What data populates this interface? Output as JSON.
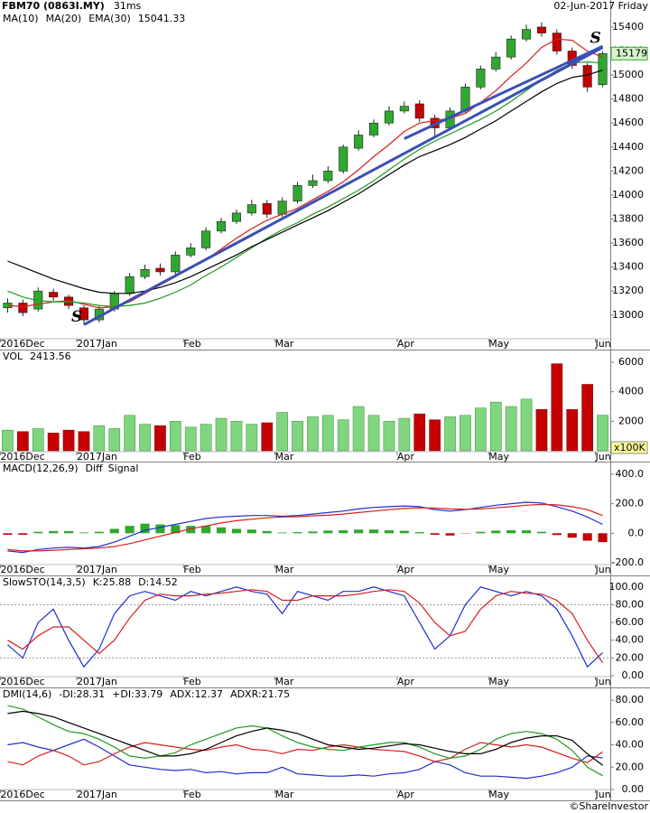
{
  "chart_data": [
    {
      "type": "candlestick",
      "title": "FBM70 (0863I.MY)",
      "subtitle": "31ms",
      "date": "02-Jun-2017 Friday",
      "categories": [
        "2016Dec",
        null,
        null,
        null,
        null,
        "2017Jan",
        null,
        null,
        null,
        null,
        null,
        null,
        "Feb",
        null,
        null,
        null,
        null,
        null,
        "Mar",
        null,
        null,
        null,
        null,
        null,
        null,
        null,
        "Apr",
        null,
        null,
        null,
        null,
        null,
        "May",
        null,
        null,
        null,
        null,
        null,
        null,
        "Jun"
      ],
      "open": [
        13060,
        13100,
        13050,
        13190,
        13150,
        13060,
        12960,
        13050,
        13180,
        13320,
        13390,
        13360,
        13500,
        13560,
        13700,
        13780,
        13850,
        13930,
        13840,
        13950,
        14080,
        14120,
        14200,
        14390,
        14500,
        14600,
        14700,
        14760,
        14640,
        14560,
        14700,
        14900,
        15050,
        15150,
        15300,
        15400,
        15350,
        15200,
        15080,
        14920
      ],
      "high": [
        13140,
        13130,
        13230,
        13220,
        13170,
        13080,
        13080,
        13200,
        13350,
        13420,
        13430,
        13530,
        13600,
        13730,
        13810,
        13880,
        13960,
        13960,
        13980,
        14110,
        14170,
        14240,
        14420,
        14540,
        14630,
        14740,
        14780,
        14790,
        14670,
        14730,
        14930,
        15080,
        15190,
        15330,
        15420,
        15440,
        15380,
        15230,
        15100,
        15200
      ],
      "low": [
        13020,
        12990,
        13030,
        13120,
        13050,
        12920,
        12940,
        13030,
        13160,
        13300,
        13330,
        13340,
        13480,
        13540,
        13680,
        13760,
        13830,
        13810,
        13820,
        13930,
        14060,
        14100,
        14180,
        14370,
        14480,
        14580,
        14680,
        14610,
        14480,
        14540,
        14680,
        14880,
        15030,
        15130,
        15280,
        15320,
        15170,
        15050,
        14860,
        14900
      ],
      "close": [
        13100,
        13020,
        13200,
        13150,
        13080,
        12960,
        13050,
        13180,
        13320,
        13380,
        13360,
        13500,
        13560,
        13700,
        13780,
        13850,
        13920,
        13840,
        13950,
        14080,
        14120,
        14200,
        14400,
        14500,
        14600,
        14700,
        14740,
        14640,
        14560,
        14700,
        14900,
        15050,
        15150,
        15300,
        15380,
        15350,
        15200,
        15080,
        14900,
        15179
      ],
      "up_color": "#2fa82f",
      "down_color": "#c40000",
      "series": [
        {
          "name": "MA(10)",
          "color": "#d81e1e",
          "values": [
            13080,
            13070,
            13090,
            13110,
            13120,
            13090,
            13060,
            13070,
            13110,
            13180,
            13250,
            13320,
            13400,
            13460,
            13550,
            13640,
            13720,
            13790,
            13840,
            13890,
            13960,
            14030,
            14110,
            14210,
            14320,
            14420,
            14530,
            14600,
            14620,
            14640,
            14680,
            14770,
            14870,
            14990,
            15100,
            15230,
            15300,
            15290,
            15200,
            15150
          ]
        },
        {
          "name": "MA(20)",
          "color": "#1f9a1f",
          "values": [
            13200,
            13150,
            13120,
            13110,
            13110,
            13100,
            13080,
            13070,
            13080,
            13100,
            13140,
            13190,
            13250,
            13330,
            13400,
            13480,
            13560,
            13640,
            13710,
            13770,
            13840,
            13900,
            13970,
            14040,
            14120,
            14210,
            14300,
            14380,
            14450,
            14510,
            14570,
            14630,
            14700,
            14780,
            14870,
            14960,
            15040,
            15100,
            15110,
            15100
          ]
        },
        {
          "name": "EMA(30)",
          "color": "#000000",
          "values": [
            13450,
            13400,
            13350,
            13300,
            13260,
            13220,
            13190,
            13180,
            13180,
            13200,
            13230,
            13270,
            13320,
            13380,
            13440,
            13500,
            13570,
            13630,
            13690,
            13750,
            13810,
            13870,
            13940,
            14010,
            14090,
            14170,
            14250,
            14320,
            14370,
            14420,
            14480,
            14550,
            14620,
            14700,
            14780,
            14860,
            14930,
            14980,
            15000,
            15041.33
          ]
        }
      ],
      "trendlines": [
        {
          "label": "S",
          "color": "#3a4fb5",
          "points": [
            [
              5,
              12920
            ],
            [
              39,
              15230
            ]
          ]
        },
        {
          "label": "S",
          "color": "#3a4fb5",
          "points": [
            [
              39,
              15240
            ],
            [
              26,
              14470
            ]
          ]
        }
      ],
      "ylim": [
        12810,
        15520
      ],
      "yticks": [
        13000,
        13200,
        13400,
        13600,
        13800,
        14000,
        14200,
        14400,
        14600,
        14800,
        15000,
        15200,
        15400
      ]
    },
    {
      "type": "bar",
      "title": "VOL",
      "unit": "x100K",
      "label_color": "#1f1fa0",
      "categories": [
        "2016Dec",
        null,
        null,
        null,
        null,
        "2017Jan",
        null,
        null,
        null,
        null,
        null,
        null,
        "Feb",
        null,
        null,
        null,
        null,
        null,
        "Mar",
        null,
        null,
        null,
        null,
        null,
        null,
        null,
        "Apr",
        null,
        null,
        null,
        null,
        null,
        "May",
        null,
        null,
        null,
        null,
        null,
        null,
        "Jun"
      ],
      "values": [
        1400,
        1300,
        1500,
        1200,
        1400,
        1300,
        1700,
        1500,
        2400,
        1800,
        1700,
        2000,
        1600,
        1800,
        2200,
        2000,
        1800,
        1900,
        2600,
        2000,
        2300,
        2400,
        2100,
        3000,
        2400,
        2000,
        2200,
        2500,
        2100,
        2300,
        2400,
        2900,
        3300,
        3000,
        3500,
        2800,
        5900,
        2800,
        4500,
        2413.56
      ],
      "up_color": "#7fd67f",
      "down_color": "#c40000",
      "ylim": [
        0,
        6735
      ],
      "yticks": [
        2000,
        4000,
        6000
      ]
    },
    {
      "type": "macd",
      "title": "MACD(12,26,9)",
      "categories": [
        "2016Dec",
        null,
        null,
        null,
        null,
        "2017Jan",
        null,
        null,
        null,
        null,
        null,
        null,
        "Feb",
        null,
        null,
        null,
        null,
        null,
        "Mar",
        null,
        null,
        null,
        null,
        null,
        null,
        null,
        "Apr",
        null,
        null,
        null,
        null,
        null,
        "May",
        null,
        null,
        null,
        null,
        null,
        null,
        "Jun"
      ],
      "series": [
        {
          "name": "Diff",
          "color": "#1f2fd0",
          "values": [
            -120,
            -130,
            -110,
            -100,
            -95,
            -100,
            -90,
            -60,
            -20,
            20,
            40,
            60,
            80,
            100,
            110,
            115,
            120,
            120,
            115,
            120,
            130,
            140,
            150,
            165,
            175,
            180,
            185,
            180,
            160,
            150,
            160,
            175,
            190,
            200,
            210,
            205,
            180,
            150,
            110,
            60
          ]
        },
        {
          "name": "Signal",
          "color": "#d81e1e",
          "values": [
            -110,
            -120,
            -120,
            -115,
            -110,
            -105,
            -100,
            -90,
            -70,
            -45,
            -20,
            5,
            30,
            50,
            70,
            85,
            95,
            105,
            110,
            112,
            118,
            122,
            130,
            140,
            150,
            160,
            168,
            172,
            170,
            165,
            162,
            165,
            172,
            180,
            190,
            195,
            192,
            180,
            160,
            120
          ]
        }
      ],
      "histogram": {
        "up_color": "#2fa82f",
        "down_color": "#c40000",
        "values": [
          -10,
          -10,
          10,
          15,
          15,
          5,
          10,
          30,
          50,
          65,
          60,
          55,
          50,
          50,
          40,
          30,
          25,
          15,
          5,
          8,
          12,
          18,
          20,
          25,
          25,
          20,
          17,
          8,
          -10,
          -15,
          -2,
          10,
          18,
          20,
          20,
          10,
          -12,
          -30,
          -50,
          -60
        ]
      },
      "ylim": [
        -206,
        473
      ],
      "yticks": [
        {
          "value": 400,
          "label": "400.0"
        },
        {
          "value": 200,
          "label": "200.0"
        },
        {
          "value": 0,
          "label": "0.0"
        },
        {
          "value": -200,
          "label": "-200.0"
        }
      ]
    },
    {
      "type": "line",
      "title": "SlowSTO(14,3,5)",
      "categories": [
        "2016Dec",
        null,
        null,
        null,
        null,
        "2017Jan",
        null,
        null,
        null,
        null,
        null,
        null,
        "Feb",
        null,
        null,
        null,
        null,
        null,
        "Mar",
        null,
        null,
        null,
        null,
        null,
        null,
        null,
        "Apr",
        null,
        null,
        null,
        null,
        null,
        "May",
        null,
        null,
        null,
        null,
        null,
        null,
        "Jun"
      ],
      "series": [
        {
          "name": "K:",
          "color": "#1f2fd0",
          "values": [
            35,
            20,
            60,
            75,
            40,
            10,
            30,
            70,
            90,
            95,
            90,
            85,
            95,
            90,
            95,
            100,
            95,
            92,
            70,
            95,
            90,
            85,
            95,
            95,
            100,
            95,
            90,
            60,
            30,
            45,
            80,
            100,
            95,
            90,
            95,
            90,
            75,
            45,
            10,
            25.88
          ]
        },
        {
          "name": "D:",
          "color": "#d81e1e",
          "values": [
            40,
            30,
            45,
            55,
            55,
            40,
            25,
            40,
            65,
            85,
            92,
            90,
            90,
            92,
            93,
            95,
            97,
            95,
            85,
            85,
            90,
            90,
            90,
            92,
            95,
            97,
            95,
            82,
            60,
            45,
            50,
            75,
            90,
            95,
            93,
            92,
            85,
            70,
            40,
            14.52
          ]
        }
      ],
      "ref_lines": [
        80,
        20
      ],
      "ylim": [
        -2,
        111
      ],
      "yticks": [
        {
          "value": 100,
          "label": "100.00"
        },
        {
          "value": 80,
          "label": "80.00"
        },
        {
          "value": 60,
          "label": "60.00"
        },
        {
          "value": 40,
          "label": "40.00"
        },
        {
          "value": 20,
          "label": "20.00"
        },
        {
          "value": 0,
          "label": "0.00"
        }
      ]
    },
    {
      "type": "line",
      "title": "DMI(14,6)",
      "categories": [
        "2016Dec",
        null,
        null,
        null,
        null,
        "2017Jan",
        null,
        null,
        null,
        null,
        null,
        null,
        "Feb",
        null,
        null,
        null,
        null,
        null,
        "Mar",
        null,
        null,
        null,
        null,
        null,
        null,
        null,
        "Apr",
        null,
        null,
        null,
        null,
        null,
        "May",
        null,
        null,
        null,
        null,
        null,
        null,
        "Jun"
      ],
      "series": [
        {
          "name": "-DI:",
          "color": "#1f2fd0",
          "values": [
            40,
            42,
            38,
            35,
            40,
            45,
            38,
            30,
            22,
            20,
            18,
            17,
            18,
            15,
            16,
            14,
            15,
            15,
            20,
            14,
            13,
            12,
            12,
            13,
            12,
            14,
            15,
            18,
            25,
            22,
            15,
            12,
            12,
            11,
            10,
            12,
            15,
            20,
            30,
            28.31
          ]
        },
        {
          "name": "+DI:",
          "color": "#d81e1e",
          "values": [
            25,
            22,
            30,
            35,
            30,
            22,
            25,
            32,
            38,
            42,
            40,
            38,
            36,
            35,
            38,
            40,
            36,
            35,
            32,
            36,
            35,
            38,
            40,
            38,
            36,
            35,
            34,
            30,
            25,
            28,
            36,
            42,
            40,
            38,
            40,
            38,
            33,
            28,
            24,
            33.79
          ]
        },
        {
          "name": "ADX:",
          "color": "#1f9a1f",
          "values": [
            75,
            72,
            65,
            58,
            52,
            50,
            45,
            38,
            30,
            28,
            30,
            33,
            40,
            45,
            50,
            55,
            57,
            55,
            48,
            42,
            38,
            36,
            35,
            38,
            40,
            42,
            42,
            38,
            32,
            28,
            30,
            36,
            45,
            50,
            52,
            50,
            45,
            35,
            20,
            12.37
          ]
        },
        {
          "name": "ADXR:",
          "color": "#000000",
          "values": [
            68,
            70,
            68,
            65,
            60,
            55,
            50,
            45,
            40,
            35,
            30,
            30,
            32,
            36,
            42,
            48,
            52,
            55,
            53,
            50,
            45,
            40,
            38,
            36,
            37,
            39,
            41,
            40,
            37,
            34,
            32,
            32,
            36,
            42,
            46,
            48,
            48,
            44,
            32,
            21.75
          ]
        }
      ],
      "ylim": [
        0,
        89.7
      ],
      "yticks": [
        {
          "value": 80,
          "label": "80.00"
        },
        {
          "value": 60,
          "label": "60.00"
        },
        {
          "value": 40,
          "label": "40.00"
        },
        {
          "value": 20,
          "label": "20.00"
        },
        {
          "value": 0,
          "label": "0.00"
        }
      ]
    }
  ],
  "footer": "©ShareInvestor"
}
